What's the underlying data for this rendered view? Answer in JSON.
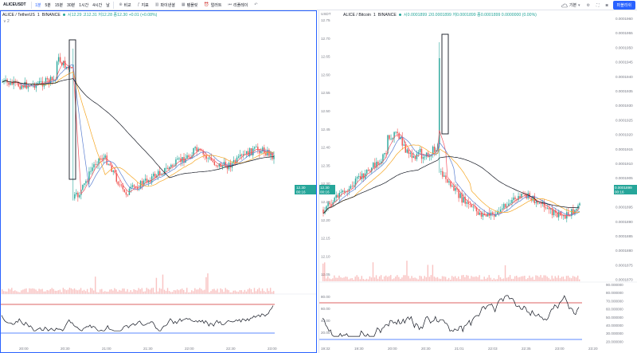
{
  "toolbar": {
    "symbol": "ALICEUSDT",
    "intervals": [
      "1분",
      "5분",
      "15분",
      "30분",
      "1시간",
      "4시간",
      "날"
    ],
    "active_interval": "1분",
    "buttons": [
      {
        "label": "비교",
        "icon": "plus-circle-icon"
      },
      {
        "label": "지표",
        "icon": "indicator-icon"
      },
      {
        "label": "파이낸셜",
        "icon": "financial-icon"
      },
      {
        "label": "템플릿",
        "icon": "template-icon"
      },
      {
        "label": "얼러트",
        "icon": "alert-icon"
      },
      {
        "label": "리플레이",
        "icon": "replay-icon"
      }
    ],
    "layout_label": "기본",
    "publish_label": "퍼블리쉬"
  },
  "left_chart": {
    "title": "ALICE / TetherUS",
    "interval": "1",
    "exchange": "BINANCE",
    "ohlc": "시12.29  고12.31  저12.28  종12.30  +0.01 (+0.08%)",
    "sublegend": "∨ 2",
    "price_tag": {
      "value": "12.30",
      "timer": "00:16"
    },
    "time_labels": [
      "20:00",
      "20:30",
      "21:00",
      "21:30",
      "22:00",
      "22:30",
      "23:00"
    ],
    "colors": {
      "up": "#26a69a",
      "down": "#ef5350",
      "ma_fast": "#f7525f",
      "ma_mid": "#5b7fd1",
      "ma_slow": "#f5a623",
      "ma_long": "#131722",
      "rsi": "#131722",
      "rsi_band": "#d32f2f"
    }
  },
  "right_chart": {
    "title": "ALICE / Bitcoin",
    "interval": "1",
    "exchange": "BINANCE",
    "ohlc": "시0.0001899  고0.0001899  저0.0001899  종0.0001899  0.0000000 (0.00%)",
    "unit": "USDT",
    "left_axis": [
      "12.75",
      "12.70",
      "12.65",
      "12.60",
      "12.55",
      "12.50",
      "12.45",
      "12.40",
      "12.35",
      "12.30",
      "12.25",
      "12.20",
      "12.15",
      "12.10",
      "12.05"
    ],
    "right_axis": [
      "0.0001960",
      "0.0001955",
      "0.0001950",
      "0.0001945",
      "0.0001940",
      "0.0001935",
      "0.0001930",
      "0.0001925",
      "0.0001920",
      "0.0001915",
      "0.0001910",
      "0.0001905",
      "0.0001900",
      "0.0001895",
      "0.0001890",
      "0.0001885",
      "0.0001880",
      "0.0001875",
      "0.0001870"
    ],
    "price_tag_left": {
      "value": "12.30",
      "timer": "00:16"
    },
    "price_tag_right": {
      "value": "0.0001899",
      "timer": "00:16"
    },
    "rsi_left_axis": [
      "80.00",
      "60.00",
      "40.00",
      "20.00"
    ],
    "rsi_right_axis": [
      "90.000000",
      "80.000000",
      "70.000000",
      "60.000000",
      "50.000000",
      "40.000000",
      "30.000000",
      "20.000000"
    ],
    "time_labels": [
      "19:32",
      "19:30",
      "20:00",
      "20:30",
      "21:01",
      "22:03",
      "22:35",
      "23:00",
      "23:20"
    ]
  }
}
